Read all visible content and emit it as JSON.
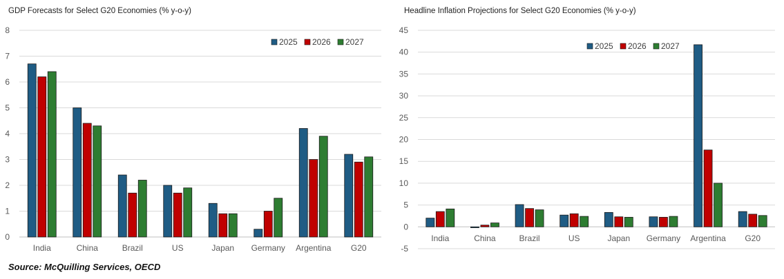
{
  "source": "Source: McQuilling Services, OECD",
  "colors": {
    "2025": "#1f5c84",
    "2026": "#c00000",
    "2027": "#2e7d32",
    "grid": "#d9d9d9"
  },
  "chart_data": [
    {
      "type": "bar",
      "title": "GDP Forecasts for Select G20 Economies (% y-o-y)",
      "categories": [
        "India",
        "China",
        "Brazil",
        "US",
        "Japan",
        "Germany",
        "Argentina",
        "G20"
      ],
      "series": [
        {
          "name": "2025",
          "values": [
            6.7,
            5.0,
            2.4,
            2.0,
            1.3,
            0.3,
            4.2,
            3.2
          ]
        },
        {
          "name": "2026",
          "values": [
            6.2,
            4.4,
            1.7,
            1.7,
            0.9,
            1.0,
            3.0,
            2.9
          ]
        },
        {
          "name": "2027",
          "values": [
            6.4,
            4.3,
            2.2,
            1.9,
            0.9,
            1.5,
            3.9,
            3.1
          ]
        }
      ],
      "ylim": [
        0,
        8
      ],
      "yticks": [
        "0",
        "1",
        "2",
        "3",
        "4",
        "5",
        "6",
        "7",
        "8"
      ],
      "xlabel": "",
      "ylabel": "",
      "legend": "top-right",
      "grid": true
    },
    {
      "type": "bar",
      "title": "Headline Inflation Projections for Select G20 Economies (% y-o-y)",
      "categories": [
        "India",
        "China",
        "Brazil",
        "US",
        "Japan",
        "Germany",
        "Argentina",
        "G20"
      ],
      "series": [
        {
          "name": "2025",
          "values": [
            2.0,
            -0.2,
            5.1,
            2.7,
            3.3,
            2.3,
            41.7,
            3.5
          ]
        },
        {
          "name": "2026",
          "values": [
            3.5,
            0.4,
            4.2,
            3.0,
            2.3,
            2.2,
            17.6,
            2.9
          ]
        },
        {
          "name": "2027",
          "values": [
            4.1,
            0.9,
            3.9,
            2.4,
            2.2,
            2.4,
            10.0,
            2.6
          ]
        }
      ],
      "ylim": [
        -5,
        45
      ],
      "yticks": [
        "-5",
        "0",
        "5",
        "10",
        "15",
        "20",
        "25",
        "30",
        "35",
        "40",
        "45"
      ],
      "xlabel": "",
      "ylabel": "",
      "legend": "top-center",
      "grid": true
    }
  ]
}
